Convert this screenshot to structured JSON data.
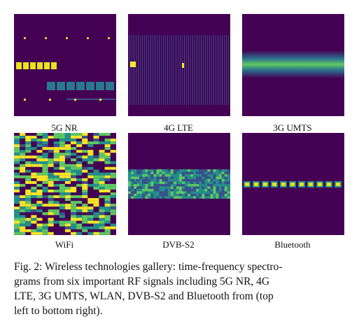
{
  "panels": [
    {
      "label": "5G NR"
    },
    {
      "label": "4G LTE"
    },
    {
      "label": "3G UMTS"
    },
    {
      "label": "WiFi"
    },
    {
      "label": "DVB-S2"
    },
    {
      "label": "Bluetooth"
    }
  ],
  "caption": {
    "lines": [
      "Fig. 2: Wireless technologies gallery: time-frequency spectro-",
      "grams from six important RF signals including 5G NR, 4G",
      "LTE, 3G UMTS, WLAN, DVB-S2 and Bluetooth from (top",
      "left to bottom right)."
    ]
  }
}
